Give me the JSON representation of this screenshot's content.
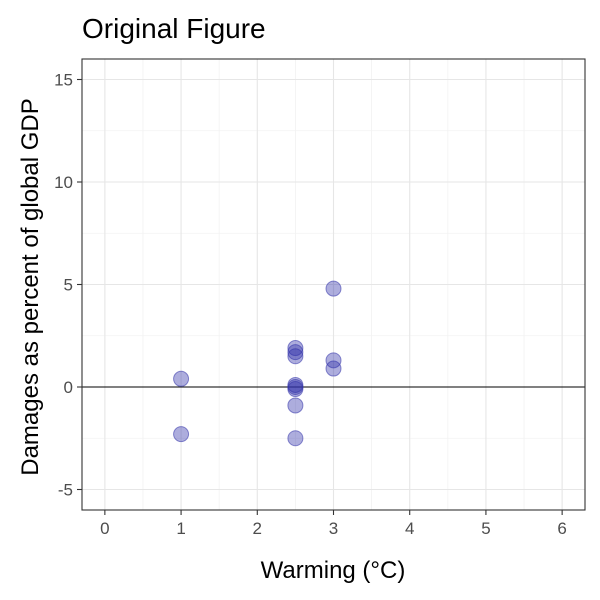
{
  "chart_data": {
    "type": "scatter",
    "title": "Original Figure",
    "xlabel": "Warming (°C)",
    "ylabel": "Damages as percent of global GDP",
    "xlim": [
      -0.3,
      6.3
    ],
    "ylim": [
      -6,
      16
    ],
    "x_ticks": [
      0,
      1,
      2,
      3,
      4,
      5,
      6
    ],
    "y_ticks": [
      -5,
      0,
      5,
      10,
      15
    ],
    "x_tick_labels": [
      "0",
      "1",
      "2",
      "3",
      "4",
      "5",
      "6"
    ],
    "y_tick_labels": [
      "-5",
      "0",
      "5",
      "10",
      "15"
    ],
    "grid": true,
    "zero_line": true,
    "legend": "none",
    "point_color": "#3333aa",
    "point_opacity": 0.4,
    "points": [
      {
        "x": 1,
        "y": 0.4
      },
      {
        "x": 1,
        "y": -2.3
      },
      {
        "x": 2.5,
        "y": 1.9
      },
      {
        "x": 2.5,
        "y": 1.7
      },
      {
        "x": 2.5,
        "y": 1.5
      },
      {
        "x": 2.5,
        "y": 0.1
      },
      {
        "x": 2.5,
        "y": 0.0
      },
      {
        "x": 2.5,
        "y": -0.1
      },
      {
        "x": 2.5,
        "y": -0.9
      },
      {
        "x": 2.5,
        "y": -2.5
      },
      {
        "x": 3,
        "y": 4.8
      },
      {
        "x": 3,
        "y": 1.3
      },
      {
        "x": 3,
        "y": 0.9
      }
    ]
  }
}
